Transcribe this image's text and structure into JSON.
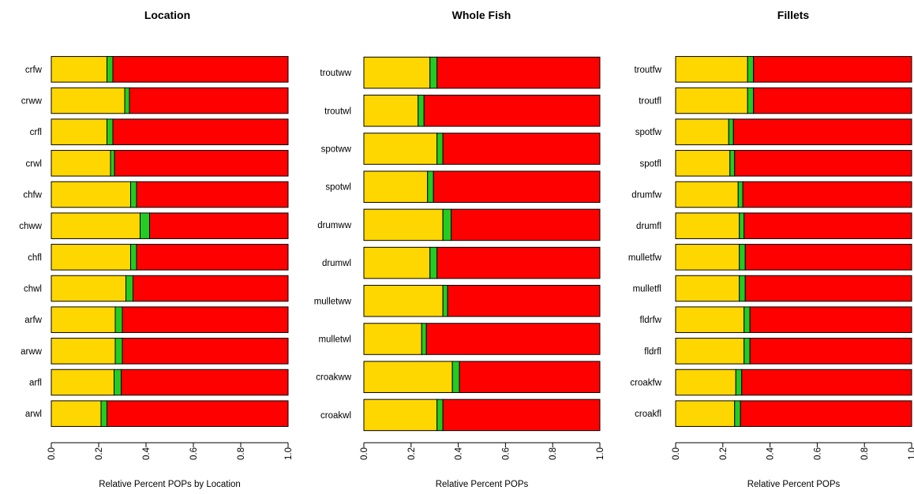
{
  "chart_data": [
    {
      "type": "bar",
      "orientation": "horizontal",
      "stacked": true,
      "title": "Location",
      "xlabel": "Relative Percent POPs by Location",
      "xlim": [
        0,
        1
      ],
      "xticks": [
        "0.0",
        "0.2",
        "0.4",
        "0.6",
        "0.8",
        "1.0"
      ],
      "categories": [
        "crfw",
        "crww",
        "crfl",
        "crwl",
        "chfw",
        "chww",
        "chfl",
        "chwl",
        "arfw",
        "arww",
        "arfl",
        "arwl"
      ],
      "series": [
        {
          "color": "#FFD700",
          "values": [
            0.235,
            0.31,
            0.235,
            0.25,
            0.335,
            0.375,
            0.335,
            0.315,
            0.27,
            0.27,
            0.265,
            0.21
          ]
        },
        {
          "color": "#22CC22",
          "values": [
            0.025,
            0.02,
            0.025,
            0.017,
            0.025,
            0.04,
            0.025,
            0.03,
            0.03,
            0.03,
            0.03,
            0.025
          ]
        },
        {
          "color": "#FF0000",
          "values": [
            0.74,
            0.67,
            0.74,
            0.733,
            0.64,
            0.585,
            0.64,
            0.655,
            0.7,
            0.7,
            0.705,
            0.765
          ]
        }
      ]
    },
    {
      "type": "bar",
      "orientation": "horizontal",
      "stacked": true,
      "title": "Whole Fish",
      "xlabel": "Relative Percent POPs",
      "xlim": [
        0,
        1
      ],
      "xticks": [
        "0.0",
        "0.2",
        "0.4",
        "0.6",
        "0.8",
        "1.0"
      ],
      "categories": [
        "troutww",
        "troutwl",
        "spotww",
        "spotwl",
        "drumww",
        "drumwl",
        "mulletww",
        "mulletwl",
        "croakww",
        "croakwl"
      ],
      "series": [
        {
          "color": "#FFD700",
          "values": [
            0.28,
            0.23,
            0.31,
            0.27,
            0.335,
            0.28,
            0.335,
            0.245,
            0.375,
            0.31
          ]
        },
        {
          "color": "#22CC22",
          "values": [
            0.03,
            0.025,
            0.025,
            0.025,
            0.035,
            0.03,
            0.02,
            0.02,
            0.03,
            0.025
          ]
        },
        {
          "color": "#FF0000",
          "values": [
            0.69,
            0.745,
            0.665,
            0.705,
            0.63,
            0.69,
            0.645,
            0.735,
            0.595,
            0.665
          ]
        }
      ]
    },
    {
      "type": "bar",
      "orientation": "horizontal",
      "stacked": true,
      "title": "Fillets",
      "xlabel": "Relative Percent POPs",
      "xlim": [
        0,
        1
      ],
      "xticks": [
        "0.0",
        "0.2",
        "0.4",
        "0.6",
        "0.8",
        "1.0"
      ],
      "categories": [
        "troutfw",
        "troutfl",
        "spotfw",
        "spotfl",
        "drumfw",
        "drumfl",
        "mulletfw",
        "mulletfl",
        "fldrfw",
        "fldrfl",
        "croakfw",
        "croakfl"
      ],
      "series": [
        {
          "color": "#FFD700",
          "values": [
            0.305,
            0.305,
            0.225,
            0.23,
            0.265,
            0.27,
            0.27,
            0.27,
            0.29,
            0.29,
            0.255,
            0.25
          ]
        },
        {
          "color": "#22CC22",
          "values": [
            0.025,
            0.025,
            0.02,
            0.02,
            0.02,
            0.02,
            0.025,
            0.025,
            0.025,
            0.025,
            0.025,
            0.025
          ]
        },
        {
          "color": "#FF0000",
          "values": [
            0.67,
            0.67,
            0.755,
            0.75,
            0.715,
            0.71,
            0.705,
            0.705,
            0.685,
            0.685,
            0.72,
            0.725
          ]
        }
      ]
    }
  ]
}
